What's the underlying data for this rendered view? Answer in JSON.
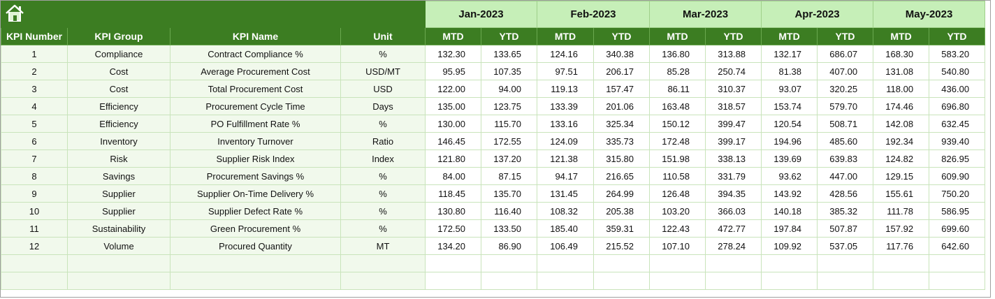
{
  "table": {
    "months": [
      "Jan-2023",
      "Feb-2023",
      "Mar-2023",
      "Apr-2023",
      "May-2023"
    ],
    "columns": [
      "KPI Number",
      "KPI Group",
      "KPI Name",
      "Unit",
      "MTD",
      "YTD",
      "MTD",
      "YTD",
      "MTD",
      "YTD",
      "MTD",
      "YTD",
      "MTD",
      "YTD"
    ],
    "rows": [
      [
        "1",
        "Compliance",
        "Contract Compliance %",
        "%",
        "132.30",
        "133.65",
        "124.16",
        "340.38",
        "136.80",
        "313.88",
        "132.17",
        "686.07",
        "168.30",
        "583.20"
      ],
      [
        "2",
        "Cost",
        "Average Procurement Cost",
        "USD/MT",
        "95.95",
        "107.35",
        "97.51",
        "206.17",
        "85.28",
        "250.74",
        "81.38",
        "407.00",
        "131.08",
        "540.80"
      ],
      [
        "3",
        "Cost",
        "Total Procurement Cost",
        "USD",
        "122.00",
        "94.00",
        "119.13",
        "157.47",
        "86.11",
        "310.37",
        "93.07",
        "320.25",
        "118.00",
        "436.00"
      ],
      [
        "4",
        "Efficiency",
        "Procurement Cycle Time",
        "Days",
        "135.00",
        "123.75",
        "133.39",
        "201.06",
        "163.48",
        "318.57",
        "153.74",
        "579.70",
        "174.46",
        "696.80"
      ],
      [
        "5",
        "Efficiency",
        "PO Fulfillment Rate %",
        "%",
        "130.00",
        "115.70",
        "133.16",
        "325.34",
        "150.12",
        "399.47",
        "120.54",
        "508.71",
        "142.08",
        "632.45"
      ],
      [
        "6",
        "Inventory",
        "Inventory Turnover",
        "Ratio",
        "146.45",
        "172.55",
        "124.09",
        "335.73",
        "172.48",
        "399.17",
        "194.96",
        "485.60",
        "192.34",
        "939.40"
      ],
      [
        "7",
        "Risk",
        "Supplier Risk Index",
        "Index",
        "121.80",
        "137.20",
        "121.38",
        "315.80",
        "151.98",
        "338.13",
        "139.69",
        "639.83",
        "124.82",
        "826.95"
      ],
      [
        "8",
        "Savings",
        "Procurement Savings %",
        "%",
        "84.00",
        "87.15",
        "94.17",
        "216.65",
        "110.58",
        "331.79",
        "93.62",
        "447.00",
        "129.15",
        "609.90"
      ],
      [
        "9",
        "Supplier",
        "Supplier On-Time Delivery %",
        "%",
        "118.45",
        "135.70",
        "131.45",
        "264.99",
        "126.48",
        "394.35",
        "143.92",
        "428.56",
        "155.61",
        "750.20"
      ],
      [
        "10",
        "Supplier",
        "Supplier Defect Rate %",
        "%",
        "130.80",
        "116.40",
        "108.32",
        "205.38",
        "103.20",
        "366.03",
        "140.18",
        "385.32",
        "111.78",
        "586.95"
      ],
      [
        "11",
        "Sustainability",
        "Green Procurement %",
        "%",
        "172.50",
        "133.50",
        "185.40",
        "359.31",
        "122.43",
        "472.77",
        "197.84",
        "507.87",
        "157.92",
        "699.60"
      ],
      [
        "12",
        "Volume",
        "Procured Quantity",
        "MT",
        "134.20",
        "86.90",
        "106.49",
        "215.52",
        "107.10",
        "278.24",
        "109.92",
        "537.05",
        "117.76",
        "642.60"
      ]
    ]
  }
}
